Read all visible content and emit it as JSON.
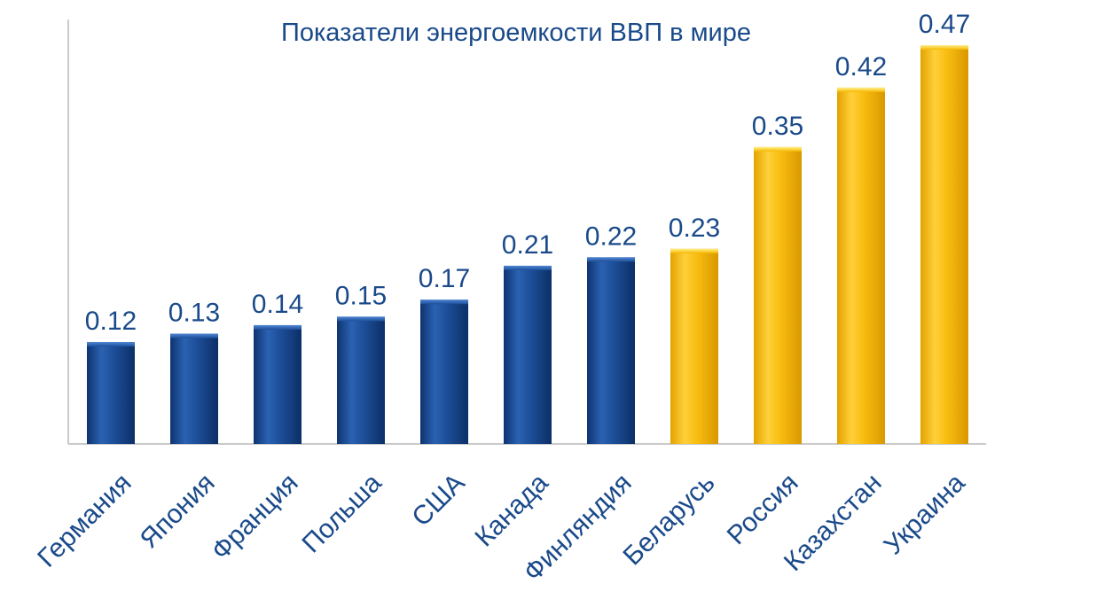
{
  "chart_data": {
    "type": "bar",
    "title": "Показатели энергоемкости ВВП в мире",
    "xlabel": "",
    "ylabel": "",
    "categories": [
      "Германия",
      "Япония",
      "Франция",
      "Польша",
      "США",
      "Канада",
      "Финляндия",
      "Беларусь",
      "Россия",
      "Казахстан",
      "Украина"
    ],
    "values": [
      0.12,
      0.13,
      0.14,
      0.15,
      0.17,
      0.21,
      0.22,
      0.23,
      0.35,
      0.42,
      0.47
    ],
    "value_labels": [
      "0.12",
      "0.13",
      "0.14",
      "0.15",
      "0.17",
      "0.21",
      "0.22",
      "0.23",
      "0.35",
      "0.42",
      "0.47"
    ],
    "bar_colors": [
      "#1d4f9a",
      "#1d4f9a",
      "#1d4f9a",
      "#1d4f9a",
      "#1d4f9a",
      "#1d4f9a",
      "#1d4f9a",
      "#f5b800",
      "#f5b800",
      "#f5b800",
      "#f5b800"
    ],
    "ylim": [
      0,
      0.47
    ],
    "grid": false,
    "legend": "none"
  },
  "colors": {
    "blue_bar": "#1d4f9a",
    "yellow_bar": "#f5b800",
    "text": "#1a4a8a",
    "axis": "#b8b8b8"
  }
}
